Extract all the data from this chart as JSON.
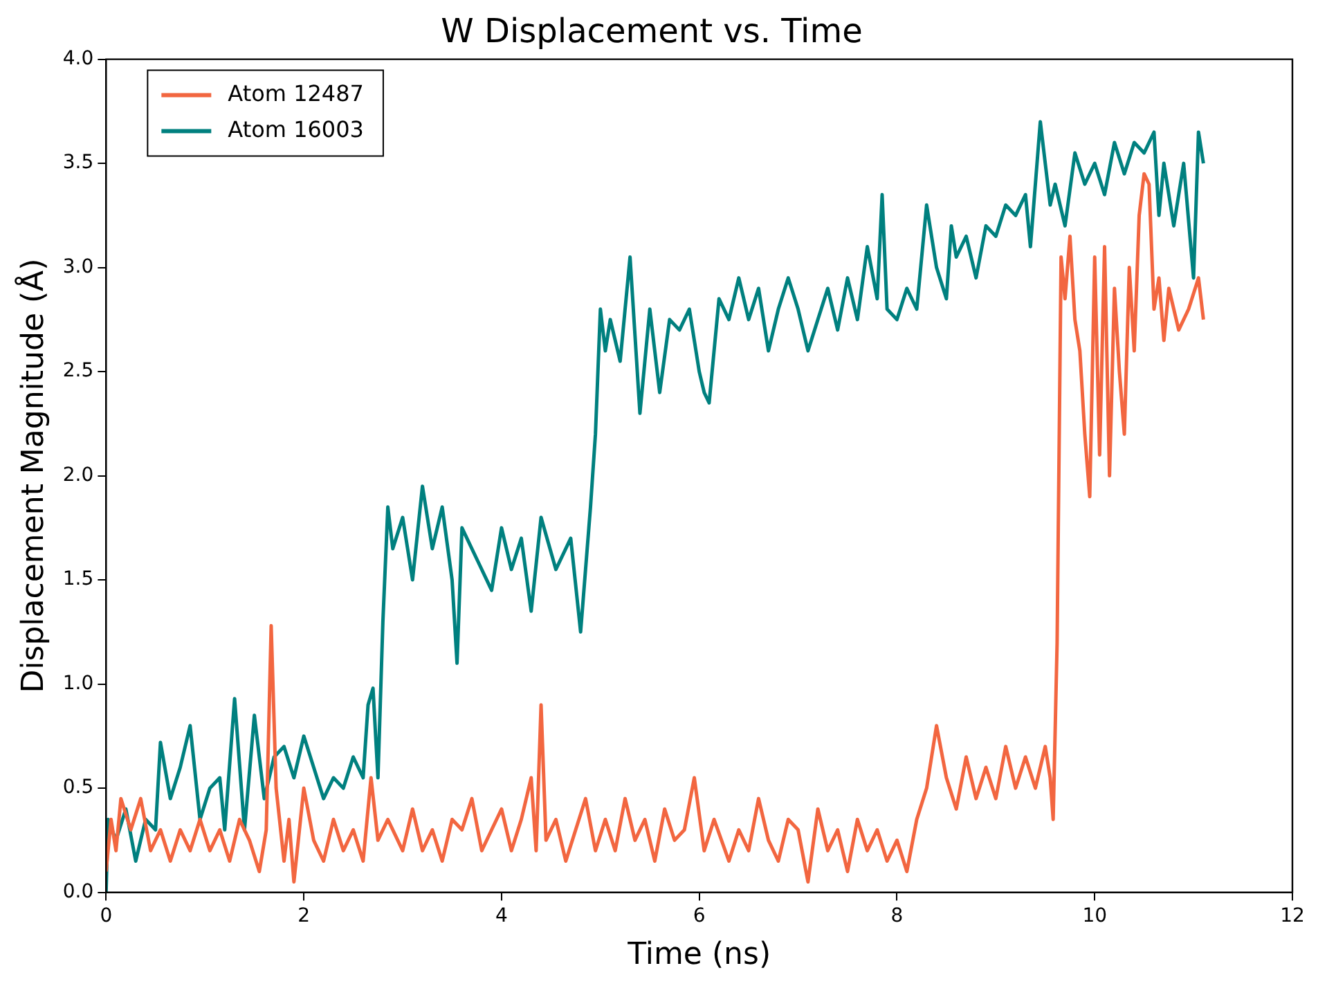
{
  "chart_data": {
    "type": "line",
    "title": "W Displacement vs. Time",
    "xlabel": "Time (ns)",
    "ylabel": "Displacement Magnitude (Å)",
    "xlim": [
      0,
      12
    ],
    "xticks": [
      0,
      2,
      4,
      6,
      8,
      10,
      12
    ],
    "ylim": [
      0,
      4
    ],
    "yticks": [
      {
        "value": 0,
        "label": "0.0"
      },
      {
        "value": 0.5,
        "label": "0.5"
      },
      {
        "value": 1,
        "label": "1.0"
      },
      {
        "value": 1.5,
        "label": "1.5"
      },
      {
        "value": 2,
        "label": "2.0"
      },
      {
        "value": 2.5,
        "label": "2.5"
      },
      {
        "value": 3,
        "label": "3.0"
      },
      {
        "value": 3.5,
        "label": "3.5"
      },
      {
        "value": 4,
        "label": "4.0"
      }
    ],
    "grid": false,
    "legend": "top left",
    "marker": "none",
    "line_style": "solid",
    "series": [
      {
        "name": "Atom 12487",
        "color": "#f26640",
        "x": [
          0,
          0.05,
          0.1,
          0.15,
          0.25,
          0.35,
          0.45,
          0.55,
          0.65,
          0.75,
          0.85,
          0.95,
          1.05,
          1.15,
          1.25,
          1.35,
          1.45,
          1.55,
          1.62,
          1.67,
          1.72,
          1.8,
          1.85,
          1.9,
          2.0,
          2.1,
          2.2,
          2.3,
          2.4,
          2.5,
          2.6,
          2.68,
          2.75,
          2.85,
          3.0,
          3.1,
          3.2,
          3.3,
          3.4,
          3.5,
          3.6,
          3.7,
          3.8,
          3.9,
          4.0,
          4.1,
          4.2,
          4.3,
          4.35,
          4.4,
          4.45,
          4.55,
          4.65,
          4.75,
          4.85,
          4.95,
          5.05,
          5.15,
          5.25,
          5.35,
          5.45,
          5.55,
          5.65,
          5.75,
          5.85,
          5.95,
          6.05,
          6.15,
          6.3,
          6.4,
          6.5,
          6.6,
          6.7,
          6.8,
          6.9,
          7.0,
          7.1,
          7.2,
          7.3,
          7.4,
          7.5,
          7.6,
          7.7,
          7.8,
          7.9,
          8.0,
          8.1,
          8.2,
          8.3,
          8.4,
          8.5,
          8.6,
          8.7,
          8.8,
          8.9,
          9.0,
          9.1,
          9.2,
          9.3,
          9.4,
          9.5,
          9.55,
          9.58,
          9.62,
          9.66,
          9.7,
          9.75,
          9.8,
          9.85,
          9.9,
          9.95,
          10.0,
          10.05,
          10.1,
          10.15,
          10.2,
          10.25,
          10.3,
          10.35,
          10.4,
          10.45,
          10.5,
          10.55,
          10.6,
          10.65,
          10.7,
          10.75,
          10.85,
          10.95,
          11.05,
          11.1
        ],
        "values": [
          0.1,
          0.35,
          0.2,
          0.45,
          0.3,
          0.45,
          0.2,
          0.3,
          0.15,
          0.3,
          0.2,
          0.35,
          0.2,
          0.3,
          0.15,
          0.35,
          0.25,
          0.1,
          0.3,
          1.28,
          0.5,
          0.15,
          0.35,
          0.05,
          0.5,
          0.25,
          0.15,
          0.35,
          0.2,
          0.3,
          0.15,
          0.55,
          0.25,
          0.35,
          0.2,
          0.4,
          0.2,
          0.3,
          0.15,
          0.35,
          0.3,
          0.45,
          0.2,
          0.3,
          0.4,
          0.2,
          0.35,
          0.55,
          0.2,
          0.9,
          0.25,
          0.35,
          0.15,
          0.3,
          0.45,
          0.2,
          0.35,
          0.2,
          0.45,
          0.25,
          0.35,
          0.15,
          0.4,
          0.25,
          0.3,
          0.55,
          0.2,
          0.35,
          0.15,
          0.3,
          0.2,
          0.45,
          0.25,
          0.15,
          0.35,
          0.3,
          0.05,
          0.4,
          0.2,
          0.3,
          0.1,
          0.35,
          0.2,
          0.3,
          0.15,
          0.25,
          0.1,
          0.35,
          0.5,
          0.8,
          0.55,
          0.4,
          0.65,
          0.45,
          0.6,
          0.45,
          0.7,
          0.5,
          0.65,
          0.5,
          0.7,
          0.55,
          0.35,
          1.2,
          3.05,
          2.85,
          3.15,
          2.75,
          2.6,
          2.2,
          1.9,
          3.05,
          2.1,
          3.1,
          2.0,
          2.9,
          2.5,
          2.2,
          3.0,
          2.6,
          3.25,
          3.45,
          3.4,
          2.8,
          2.95,
          2.65,
          2.9,
          2.7,
          2.8,
          2.95,
          2.75
        ]
      },
      {
        "name": "Atom 16003",
        "color": "#00807f",
        "x": [
          0,
          0.02,
          0.1,
          0.2,
          0.3,
          0.4,
          0.5,
          0.55,
          0.65,
          0.75,
          0.85,
          0.95,
          1.05,
          1.15,
          1.2,
          1.3,
          1.4,
          1.5,
          1.6,
          1.7,
          1.8,
          1.9,
          2.0,
          2.1,
          2.2,
          2.3,
          2.4,
          2.5,
          2.6,
          2.65,
          2.7,
          2.75,
          2.8,
          2.85,
          2.9,
          3.0,
          3.1,
          3.2,
          3.3,
          3.4,
          3.5,
          3.55,
          3.6,
          3.75,
          3.9,
          4.0,
          4.1,
          4.2,
          4.3,
          4.4,
          4.55,
          4.7,
          4.8,
          4.85,
          4.9,
          4.95,
          5.0,
          5.05,
          5.1,
          5.2,
          5.3,
          5.4,
          5.5,
          5.6,
          5.7,
          5.8,
          5.9,
          6.0,
          6.05,
          6.1,
          6.2,
          6.3,
          6.4,
          6.5,
          6.6,
          6.7,
          6.8,
          6.9,
          7.0,
          7.1,
          7.2,
          7.3,
          7.4,
          7.5,
          7.6,
          7.7,
          7.8,
          7.85,
          7.9,
          8.0,
          8.1,
          8.2,
          8.3,
          8.4,
          8.5,
          8.55,
          8.6,
          8.7,
          8.8,
          8.9,
          9.0,
          9.1,
          9.2,
          9.3,
          9.35,
          9.45,
          9.55,
          9.6,
          9.7,
          9.8,
          9.9,
          10.0,
          10.1,
          10.2,
          10.3,
          10.4,
          10.5,
          10.6,
          10.65,
          10.7,
          10.8,
          10.9,
          11.0,
          11.05,
          11.1
        ],
        "values": [
          0.0,
          0.35,
          0.25,
          0.4,
          0.15,
          0.35,
          0.3,
          0.72,
          0.45,
          0.6,
          0.8,
          0.35,
          0.5,
          0.55,
          0.3,
          0.93,
          0.3,
          0.85,
          0.45,
          0.65,
          0.7,
          0.55,
          0.75,
          0.6,
          0.45,
          0.55,
          0.5,
          0.65,
          0.55,
          0.9,
          0.98,
          0.55,
          1.3,
          1.85,
          1.65,
          1.8,
          1.5,
          1.95,
          1.65,
          1.85,
          1.5,
          1.1,
          1.75,
          1.6,
          1.45,
          1.75,
          1.55,
          1.7,
          1.35,
          1.8,
          1.55,
          1.7,
          1.25,
          1.55,
          1.85,
          2.2,
          2.8,
          2.6,
          2.75,
          2.55,
          3.05,
          2.3,
          2.8,
          2.4,
          2.75,
          2.7,
          2.8,
          2.5,
          2.4,
          2.35,
          2.85,
          2.75,
          2.95,
          2.75,
          2.9,
          2.6,
          2.8,
          2.95,
          2.8,
          2.6,
          2.75,
          2.9,
          2.7,
          2.95,
          2.75,
          3.1,
          2.85,
          3.35,
          2.8,
          2.75,
          2.9,
          2.8,
          3.3,
          3.0,
          2.85,
          3.2,
          3.05,
          3.15,
          2.95,
          3.2,
          3.15,
          3.3,
          3.25,
          3.35,
          3.1,
          3.7,
          3.3,
          3.4,
          3.2,
          3.55,
          3.4,
          3.5,
          3.35,
          3.6,
          3.45,
          3.6,
          3.55,
          3.65,
          3.25,
          3.5,
          3.2,
          3.5,
          2.95,
          3.65,
          3.5
        ]
      }
    ]
  }
}
